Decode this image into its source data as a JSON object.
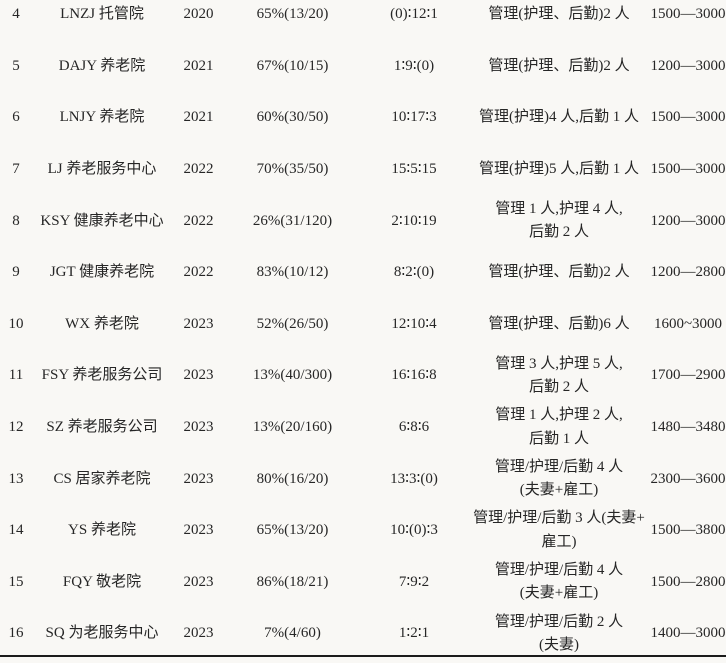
{
  "colors": {
    "page_background": "#f9f8f5",
    "text": "#262626",
    "bottom_rule": "#1b1b1b"
  },
  "table": {
    "rows": [
      {
        "no": "4",
        "name": "LNZJ 托管院",
        "year": "2020",
        "occupancy": "65%(13/20)",
        "ratio": "(0)∶12∶1",
        "staff": "管理(护理、后勤)2 人",
        "price": "1500—3000"
      },
      {
        "no": "5",
        "name": "DAJY 养老院",
        "year": "2021",
        "occupancy": "67%(10/15)",
        "ratio": "1∶9∶(0)",
        "staff": "管理(护理、后勤)2 人",
        "price": "1200—3000"
      },
      {
        "no": "6",
        "name": "LNJY 养老院",
        "year": "2021",
        "occupancy": "60%(30/50)",
        "ratio": "10∶17∶3",
        "staff": "管理(护理)4 人,后勤 1 人",
        "price": "1500—3000"
      },
      {
        "no": "7",
        "name": "LJ 养老服务中心",
        "year": "2022",
        "occupancy": "70%(35/50)",
        "ratio": "15∶5∶15",
        "staff": "管理(护理)5 人,后勤 1 人",
        "price": "1500—3000"
      },
      {
        "no": "8",
        "name": "KSY 健康养老中心",
        "year": "2022",
        "occupancy": "26%(31/120)",
        "ratio": "2∶10∶19",
        "staff": "管理 1 人,护理 4 人,\n后勤 2 人",
        "price": "1200—3000"
      },
      {
        "no": "9",
        "name": "JGT 健康养老院",
        "year": "2022",
        "occupancy": "83%(10/12)",
        "ratio": "8∶2∶(0)",
        "staff": "管理(护理、后勤)2 人",
        "price": "1200—2800"
      },
      {
        "no": "10",
        "name": "WX 养老院",
        "year": "2023",
        "occupancy": "52%(26/50)",
        "ratio": "12∶10∶4",
        "staff": "管理(护理、后勤)6 人",
        "price": "1600~3000"
      },
      {
        "no": "11",
        "name": "FSY 养老服务公司",
        "year": "2023",
        "occupancy": "13%(40/300)",
        "ratio": "16∶16∶8",
        "staff": "管理 3 人,护理 5 人,\n后勤 2 人",
        "price": "1700—2900"
      },
      {
        "no": "12",
        "name": "SZ 养老服务公司",
        "year": "2023",
        "occupancy": "13%(20/160)",
        "ratio": "6∶8∶6",
        "staff": "管理 1 人,护理 2 人,\n后勤 1 人",
        "price": "1480—3480"
      },
      {
        "no": "13",
        "name": "CS 居家养老院",
        "year": "2023",
        "occupancy": "80%(16/20)",
        "ratio": "13∶3∶(0)",
        "staff": "管理/护理/后勤 4 人\n(夫妻+雇工)",
        "price": "2300—3600"
      },
      {
        "no": "14",
        "name": "YS 养老院",
        "year": "2023",
        "occupancy": "65%(13/20)",
        "ratio": "10∶(0)∶3",
        "staff": "管理/护理/后勤 3 人(夫妻+\n雇工)",
        "price": "1500—3800"
      },
      {
        "no": "15",
        "name": "FQY 敬老院",
        "year": "2023",
        "occupancy": "86%(18/21)",
        "ratio": "7∶9∶2",
        "staff": "管理/护理/后勤 4 人\n(夫妻+雇工)",
        "price": "1500—2800"
      },
      {
        "no": "16",
        "name": "SQ 为老服务中心",
        "year": "2023",
        "occupancy": "7%(4/60)",
        "ratio": "1∶2∶1",
        "staff": "管理/护理/后勤 2 人\n(夫妻)",
        "price": "1400—3000"
      }
    ]
  }
}
